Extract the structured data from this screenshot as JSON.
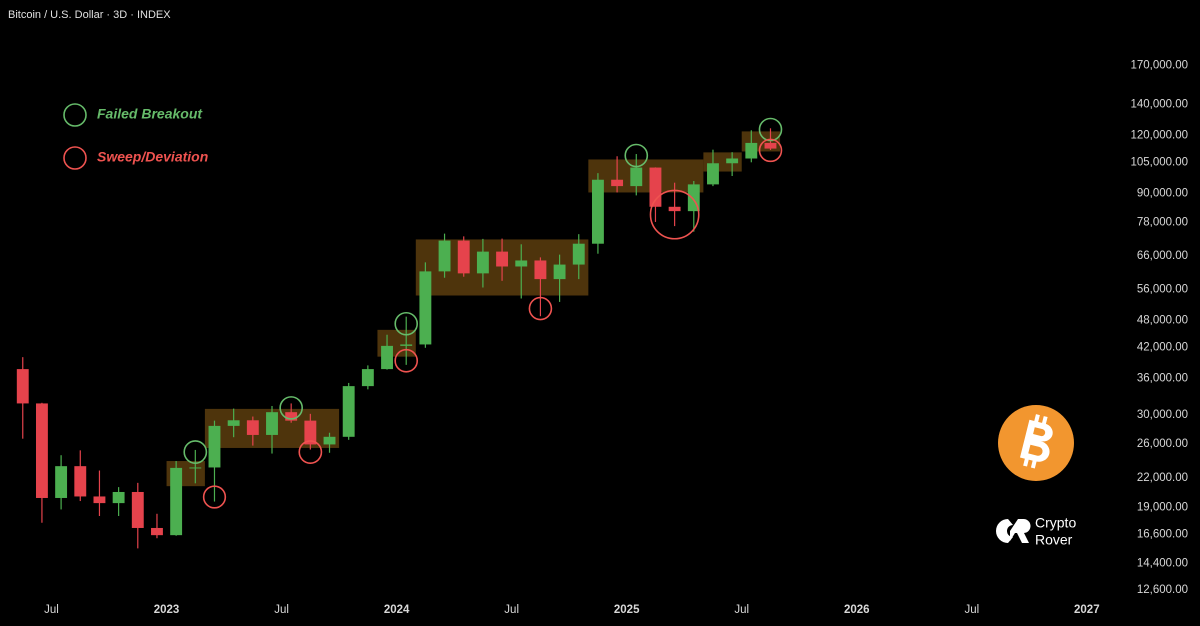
{
  "chart_data": {
    "type": "candlestick",
    "title": "Bitcoin / U.S. Dollar · 3D · INDEX",
    "scale": "log",
    "grid": false,
    "legend": "top-left",
    "up_color": "#4caf50",
    "down_color": "#e5434c",
    "xlim": [
      "2022-04",
      "2027-02"
    ],
    "ylim": [
      12000,
      235000
    ],
    "xticks": [
      {
        "value": "2022-07",
        "label": "Jul"
      },
      {
        "value": "2023-01",
        "label": "2023"
      },
      {
        "value": "2023-07",
        "label": "Jul"
      },
      {
        "value": "2024-01",
        "label": "2024"
      },
      {
        "value": "2024-07",
        "label": "Jul"
      },
      {
        "value": "2025-01",
        "label": "2025"
      },
      {
        "value": "2025-07",
        "label": "Jul"
      },
      {
        "value": "2026-01",
        "label": "2026"
      },
      {
        "value": "2026-07",
        "label": "Jul"
      },
      {
        "value": "2027-01",
        "label": "2027"
      }
    ],
    "yticks": [
      {
        "value": 12600,
        "label": "12,600.00"
      },
      {
        "value": 14400,
        "label": "14,400.00"
      },
      {
        "value": 16600,
        "label": "16,600.00"
      },
      {
        "value": 19000,
        "label": "19,000.00"
      },
      {
        "value": 22000,
        "label": "22,000.00"
      },
      {
        "value": 26000,
        "label": "26,000.00"
      },
      {
        "value": 30000,
        "label": "30,000.00"
      },
      {
        "value": 36000,
        "label": "36,000.00"
      },
      {
        "value": 42000,
        "label": "42,000.00"
      },
      {
        "value": 48000,
        "label": "48,000.00"
      },
      {
        "value": 56000,
        "label": "56,000.00"
      },
      {
        "value": 66000,
        "label": "66,000.00"
      },
      {
        "value": 78000,
        "label": "78,000.00"
      },
      {
        "value": 90000,
        "label": "90,000.00"
      },
      {
        "value": 105000,
        "label": "105,000.00"
      },
      {
        "value": 120000,
        "label": "120,000.00"
      },
      {
        "value": 140000,
        "label": "140,000.00"
      },
      {
        "value": 170000,
        "label": "170,000.00"
      }
    ],
    "x": [
      "2022-05",
      "2022-06",
      "2022-07",
      "2022-08",
      "2022-09",
      "2022-10",
      "2022-11",
      "2022-12",
      "2023-01",
      "2023-02",
      "2023-03",
      "2023-04",
      "2023-05",
      "2023-06",
      "2023-07",
      "2023-08",
      "2023-09",
      "2023-10",
      "2023-11",
      "2023-12",
      "2024-01",
      "2024-02",
      "2024-03",
      "2024-04",
      "2024-05",
      "2024-06",
      "2024-07",
      "2024-08",
      "2024-09",
      "2024-10",
      "2024-11",
      "2024-12",
      "2025-01",
      "2025-02",
      "2025-03",
      "2025-04",
      "2025-05",
      "2025-06",
      "2025-07",
      "2025-08"
    ],
    "open": [
      37700,
      31800,
      19900,
      23300,
      20050,
      19400,
      20500,
      17150,
      16550,
      23100,
      23150,
      28450,
      29250,
      27200,
      30450,
      29200,
      25950,
      26950,
      34650,
      37700,
      42300,
      42600,
      61200,
      71300,
      60600,
      67500,
      62700,
      64600,
      58900,
      63300,
      70200,
      96400,
      93400,
      102400,
      84300,
      82500,
      94200,
      104600,
      107100,
      115700
    ],
    "high": [
      40000,
      31900,
      24600,
      25200,
      22800,
      21000,
      21450,
      18400,
      23900,
      25250,
      29200,
      31000,
      29800,
      31400,
      31800,
      30200,
      27500,
      35200,
      38400,
      44700,
      48900,
      64000,
      73800,
      72800,
      71900,
      72000,
      70000,
      65600,
      66500,
      73600,
      99600,
      108300,
      109500,
      102500,
      95000,
      95800,
      111900,
      110500,
      123200,
      124400
    ],
    "low": [
      26700,
      17600,
      18800,
      19600,
      18200,
      18200,
      15500,
      16300,
      16500,
      21400,
      19550,
      26900,
      25800,
      24800,
      28900,
      25300,
      24900,
      26550,
      34100,
      37600,
      38500,
      41900,
      59300,
      59600,
      56500,
      58400,
      53500,
      49000,
      52600,
      58900,
      66800,
      90500,
      89200,
      78200,
      76600,
      74500,
      93400,
      98200,
      105100,
      111700
    ],
    "close": [
      31800,
      19900,
      23300,
      20050,
      19400,
      20500,
      17150,
      16550,
      23100,
      23150,
      28450,
      29250,
      27200,
      30450,
      29200,
      25950,
      26950,
      34650,
      37700,
      42300,
      42600,
      61200,
      71300,
      60600,
      67500,
      62700,
      64600,
      58900,
      63300,
      70200,
      96400,
      93400,
      102400,
      84300,
      82500,
      94200,
      104600,
      107100,
      115700,
      112500
    ],
    "zones": {
      "color": "#5c3d0e",
      "items": [
        {
          "x_start": "2023-01",
          "x_end": "2023-03",
          "y_low": 21100,
          "y_high": 23900
        },
        {
          "x_start": "2023-03",
          "x_end": "2023-10",
          "y_low": 25500,
          "y_high": 30950
        },
        {
          "x_start": "2023-12",
          "x_end": "2024-02",
          "y_low": 40100,
          "y_high": 45800
        },
        {
          "x_start": "2024-02",
          "x_end": "2024-11",
          "y_low": 54300,
          "y_high": 71700
        },
        {
          "x_start": "2024-11",
          "x_end": "2025-05",
          "y_low": 90500,
          "y_high": 106600
        },
        {
          "x_start": "2025-05",
          "x_end": "2025-07",
          "y_low": 100400,
          "y_high": 110400
        },
        {
          "x_start": "2025-07",
          "x_end": "2025-09",
          "y_low": 110900,
          "y_high": 122500
        }
      ]
    },
    "markers": [
      {
        "name": "Failed Breakout",
        "color": "#66bb6a",
        "points": [
          {
            "x": "2023-02",
            "low": 23650,
            "high": 26400
          },
          {
            "x": "2023-07",
            "low": 29450,
            "high": 32850
          },
          {
            "x": "2024-01",
            "low": 44700,
            "high": 49850
          },
          {
            "x": "2025-01",
            "low": 102900,
            "high": 114800
          },
          {
            "x": "2025-08",
            "low": 117100,
            "high": 130600
          }
        ]
      },
      {
        "name": "Sweep/Deviation",
        "color": "#ef5350",
        "points": [
          {
            "x": "2023-03",
            "low": 18950,
            "high": 21100
          },
          {
            "x": "2023-08",
            "low": 23650,
            "high": 26400
          },
          {
            "x": "2024-01",
            "low": 37200,
            "high": 41500
          },
          {
            "x": "2024-08",
            "low": 48200,
            "high": 53750
          },
          {
            "x": "2025-03",
            "low": 71950,
            "high": 91400
          },
          {
            "x": "2025-08",
            "low": 105600,
            "high": 117750
          }
        ]
      }
    ]
  },
  "branding": {
    "line1": "Crypto",
    "line2": "Rover"
  }
}
